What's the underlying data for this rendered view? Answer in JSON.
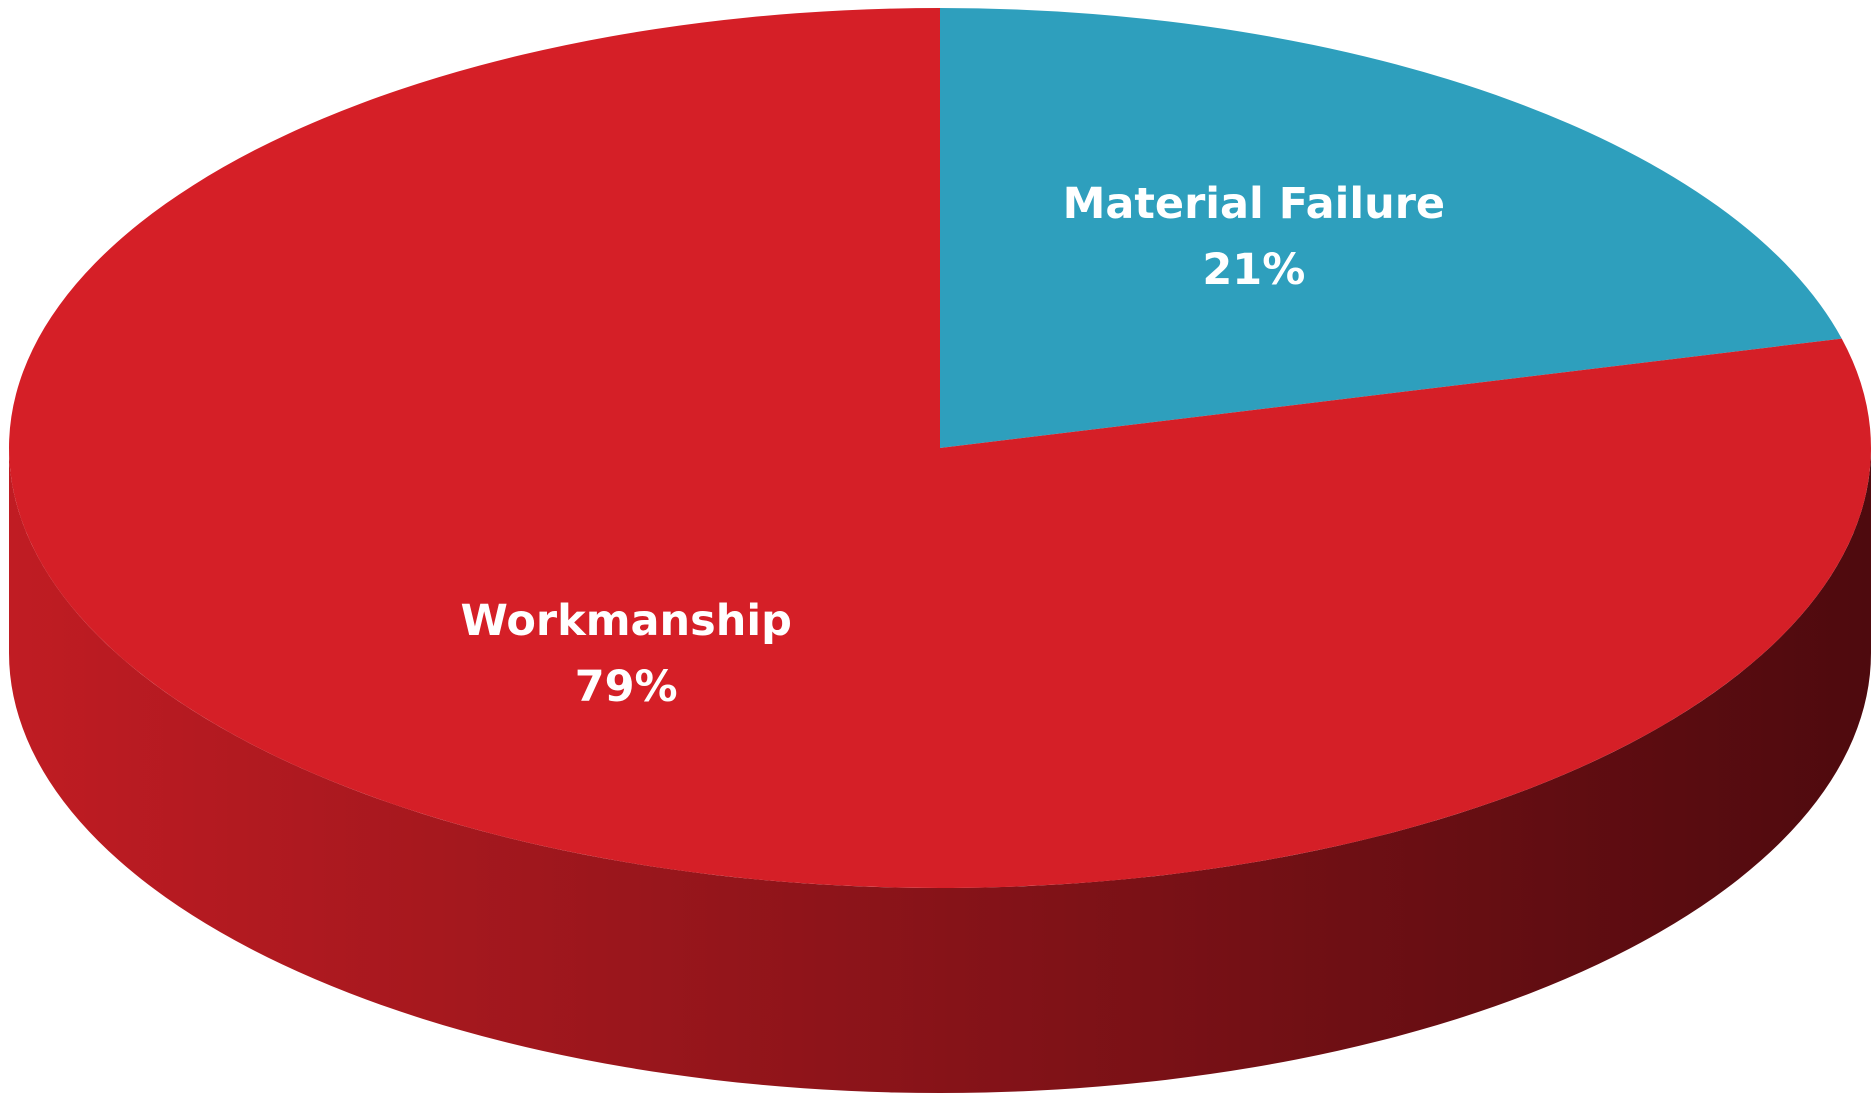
{
  "chart_data": {
    "type": "pie",
    "categories": [
      "Material Failure",
      "Workmanship"
    ],
    "values": [
      21,
      79
    ],
    "value_labels": [
      "21%",
      "79%"
    ],
    "colors": [
      "#2e9fbd",
      "#d51f27"
    ]
  }
}
